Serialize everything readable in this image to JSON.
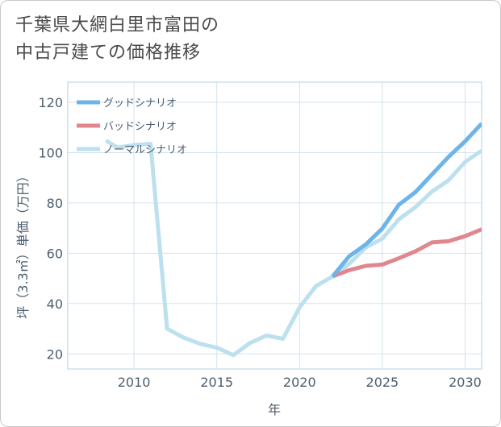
{
  "title_lines": [
    "千葉県大網白里市富田の",
    "中古戸建ての価格推移"
  ],
  "chart_data": {
    "type": "line",
    "title": "千葉県大網白里市富田の中古戸建ての価格推移",
    "xlabel": "年",
    "ylabel": "坪（3.3㎡）単価（万円）",
    "xlim": [
      2006,
      2031
    ],
    "ylim": [
      14,
      128
    ],
    "xticks": [
      2010,
      2015,
      2020,
      2025,
      2030
    ],
    "yticks": [
      20,
      40,
      60,
      80,
      100,
      120
    ],
    "grid": true,
    "legend_position": "top-left",
    "series": [
      {
        "name": "グッドシナリオ",
        "color": "#6cb4ea",
        "x": [
          2022,
          2023,
          2024,
          2025,
          2026,
          2027,
          2028,
          2029,
          2030,
          2031
        ],
        "y": [
          50.8,
          58.8,
          63.5,
          69.8,
          79.3,
          84.3,
          91.3,
          98.3,
          104.5,
          111.5
        ]
      },
      {
        "name": "バッドシナリオ",
        "color": "#e0868f",
        "x": [
          2022,
          2023,
          2024,
          2025,
          2026,
          2027,
          2028,
          2029,
          2030,
          2031
        ],
        "y": [
          50.8,
          53.3,
          55.0,
          55.5,
          58.0,
          60.8,
          64.3,
          64.8,
          66.8,
          69.5
        ]
      },
      {
        "name": "ノーマルシナリオ",
        "color": "#bde0ef",
        "x": [
          2008.3,
          2009,
          2010,
          2011,
          2012,
          2013,
          2014,
          2015,
          2016,
          2017,
          2018,
          2019,
          2020,
          2021,
          2022,
          2023,
          2024,
          2025,
          2026,
          2027,
          2028,
          2029,
          2030,
          2031
        ],
        "y": [
          104.8,
          102.0,
          103.0,
          103.5,
          30.0,
          26.5,
          24.0,
          22.5,
          19.5,
          24.3,
          27.3,
          26.0,
          38.5,
          47.0,
          50.8,
          55.8,
          62.3,
          65.8,
          73.5,
          78.3,
          84.5,
          89.0,
          96.3,
          100.8
        ]
      }
    ]
  }
}
